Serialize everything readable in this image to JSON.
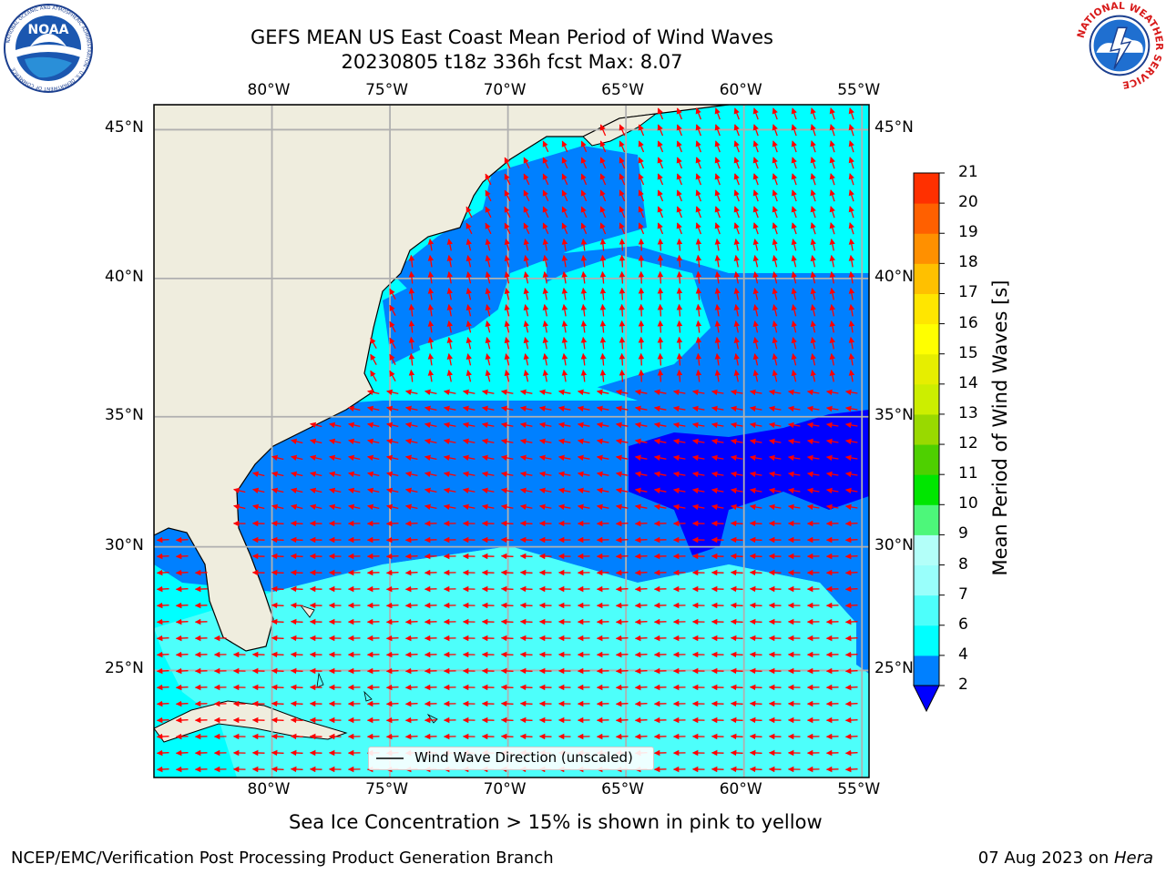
{
  "header": {
    "title_line1": "GEFS MEAN US East Coast Mean Period of Wind Waves",
    "title_line2": "20230805 t18z 336h fcst   Max: 8.07"
  },
  "logos": {
    "left_text": "NOAA",
    "left_ring": "NATIONAL OCEANIC AND ATMOSPHERIC ADMINISTRATION · U.S. DEPARTMENT OF COMMERCE",
    "right_ring": "NATIONAL WEATHER SERVICE"
  },
  "map": {
    "lon_labels": [
      "80°W",
      "75°W",
      "70°W",
      "65°W",
      "60°W",
      "55°W"
    ],
    "lat_labels": [
      "45°N",
      "40°N",
      "35°N",
      "30°N",
      "25°N"
    ],
    "lon_values": [
      -80,
      -75,
      -70,
      -65,
      -60,
      -55
    ],
    "lat_values": [
      45,
      40,
      35,
      30,
      25
    ],
    "lon_range": [
      -85,
      -54.7
    ],
    "lat_range": [
      20.5,
      45.8
    ],
    "colors": {
      "land": "#efedde",
      "ocean_lightest": "#4dfffb",
      "ocean_light": "#00ffff",
      "ocean_mid": "#0080ff",
      "ocean_dark": "#0000ff",
      "grid": "#b0b0b0",
      "arrow": "#ff0000"
    },
    "legend_label": "Wind Wave Direction (unscaled)"
  },
  "colorbar": {
    "label": "Mean Period of Wind Waves [s]",
    "ticks": [
      "2",
      "4",
      "6",
      "7",
      "8",
      "9",
      "10",
      "11",
      "12",
      "13",
      "14",
      "15",
      "16",
      "17",
      "18",
      "19",
      "20",
      "21"
    ],
    "colors": [
      "#0080ff",
      "#00ffff",
      "#4dfffb",
      "#99fffb",
      "#b3fff9",
      "#4df77a",
      "#00e600",
      "#4ed000",
      "#99d900",
      "#ccee00",
      "#e6ee00",
      "#ffff00",
      "#ffe600",
      "#ffc000",
      "#ff9000",
      "#ff6000",
      "#ff3000",
      "#ff0000"
    ],
    "extend_color": "#0000ff"
  },
  "notes": {
    "sea_ice": "Sea Ice Concentration > 15% is shown in pink to yellow"
  },
  "footer": {
    "left": "NCEP/EMC/Verification Post Processing Product Generation Branch",
    "right_date": "07 Aug 2023 on ",
    "right_machine": "Hera"
  }
}
